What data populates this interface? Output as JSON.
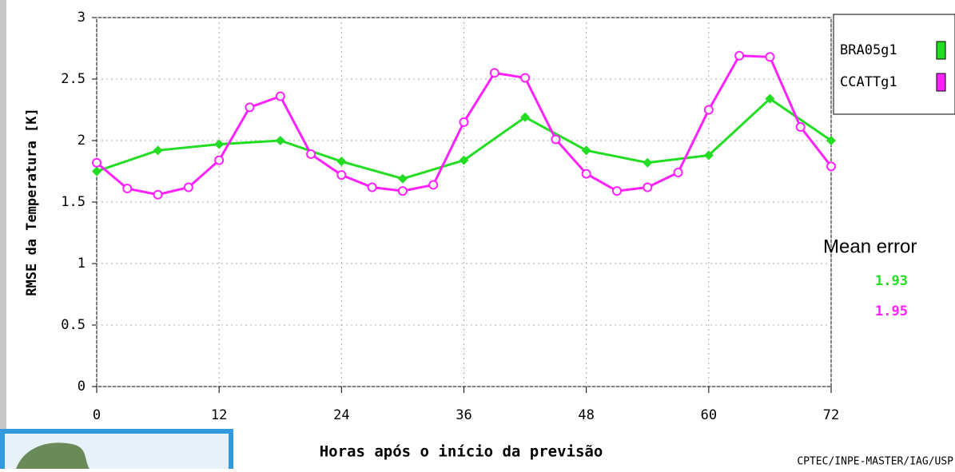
{
  "chart_data": {
    "type": "line",
    "ylabel": "RMSE da Temperatura [K]",
    "xlabel": "Horas após o início da previsão",
    "credit": "CPTEC/INPE-MASTER/IAG/USP",
    "xlim": [
      0,
      72
    ],
    "xticks": [
      0,
      12,
      24,
      36,
      48,
      60,
      72
    ],
    "ylim": [
      0,
      3
    ],
    "yticks": [
      0,
      0.5,
      1,
      1.5,
      2,
      2.5,
      3
    ],
    "grid": true,
    "legend": "upper right",
    "series": [
      {
        "name": "BRA05g1",
        "color": "#22dd22",
        "x": [
          0,
          6,
          12,
          18,
          24,
          30,
          36,
          42,
          48,
          54,
          60,
          66,
          72
        ],
        "values": [
          1.75,
          1.92,
          1.97,
          2.0,
          1.83,
          1.69,
          1.84,
          2.19,
          1.92,
          1.82,
          1.88,
          2.34,
          2.0
        ]
      },
      {
        "name": "CCATTg1",
        "color": "#ff22ff",
        "x": [
          0,
          3,
          6,
          9,
          12,
          15,
          18,
          21,
          24,
          27,
          30,
          33,
          36,
          39,
          42,
          45,
          48,
          51,
          54,
          57,
          60,
          63,
          66,
          69,
          72
        ],
        "values": [
          1.82,
          1.61,
          1.56,
          1.62,
          1.84,
          2.27,
          2.36,
          1.89,
          1.72,
          1.62,
          1.59,
          1.64,
          2.15,
          2.55,
          2.51,
          2.01,
          1.73,
          1.59,
          1.62,
          1.74,
          2.25,
          2.69,
          2.68,
          2.11,
          1.79
        ]
      }
    ],
    "mean_error": {
      "label": "Mean error",
      "values": [
        1.93,
        1.95
      ]
    }
  }
}
